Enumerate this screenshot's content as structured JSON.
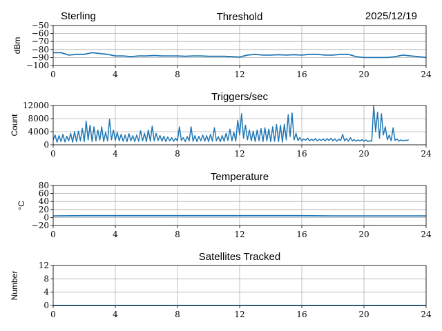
{
  "header": {
    "station": "Sterling",
    "date": "2025/12/19"
  },
  "chart_data": [
    {
      "type": "line",
      "title": "Threshold",
      "ylabel": "dBm",
      "xlim": [
        0,
        24
      ],
      "ylim": [
        -100,
        -50
      ],
      "xticks": [
        "0",
        "4",
        "8",
        "12",
        "16",
        "20",
        "24"
      ],
      "yticks": [
        "-100",
        "-90",
        "-80",
        "-70",
        "-60",
        "-50"
      ],
      "grid": true,
      "color": "#1f77b4",
      "x_step": 0.5,
      "values": [
        -84,
        -84,
        -87,
        -86,
        -86,
        -84,
        -85,
        -86,
        -88,
        -88,
        -89,
        -88,
        -88,
        -87.5,
        -88,
        -88,
        -88,
        -88.5,
        -88,
        -88,
        -88.5,
        -88.5,
        -88.5,
        -89,
        -89.5,
        -87,
        -86,
        -87,
        -87,
        -86.5,
        -87,
        -86.5,
        -87,
        -86,
        -86,
        -87,
        -87,
        -86,
        -86,
        -89,
        -90,
        -90,
        -90,
        -90,
        -89,
        -87,
        -88,
        -89,
        -90
      ]
    },
    {
      "type": "line",
      "title": "Triggers/sec",
      "ylabel": "Count",
      "xlim": [
        0,
        24
      ],
      "ylim": [
        0,
        12000
      ],
      "xticks": [
        "0",
        "4",
        "8",
        "12",
        "16",
        "20",
        "24"
      ],
      "yticks": [
        "0",
        "4000",
        "8000",
        "12000"
      ],
      "grid": true,
      "color": "#1f77b4",
      "x_step": 0.125,
      "values": [
        1500,
        3000,
        800,
        2800,
        1000,
        3200,
        900,
        2600,
        1200,
        3500,
        800,
        4000,
        1000,
        4200,
        1200,
        5000,
        1000,
        7200,
        1500,
        6000,
        1000,
        5500,
        1200,
        4500,
        1400,
        5500,
        1000,
        3800,
        1200,
        7800,
        1500,
        4500,
        1300,
        3800,
        1200,
        3200,
        1100,
        3000,
        1000,
        3400,
        1200,
        2800,
        1000,
        3000,
        1100,
        4300,
        1200,
        3500,
        1000,
        4500,
        1100,
        5700,
        1200,
        3500,
        1300,
        2800,
        1100,
        2600,
        1000,
        2400,
        1200,
        2200,
        1100,
        2000,
        1200,
        5500,
        1300,
        2200,
        1000,
        2500,
        1200,
        5500,
        1100,
        2800,
        1000,
        2600,
        1200,
        3000,
        1100,
        2800,
        1000,
        3200,
        1100,
        5200,
        1200,
        2500,
        1000,
        2800,
        1100,
        3500,
        1300,
        4800,
        1200,
        3800,
        1100,
        7500,
        3000,
        9500,
        2000,
        6000,
        1500,
        4500,
        1200,
        4200,
        1000,
        4500,
        1200,
        5000,
        1000,
        5200,
        1200,
        4800,
        1000,
        5500,
        1100,
        6200,
        1000,
        6000,
        800,
        6300,
        1500,
        9200,
        2500,
        9700,
        1500,
        3500,
        1300,
        2200,
        1200,
        1800,
        1400,
        2000,
        1200,
        1700,
        1300,
        1900,
        1200,
        1700,
        1300,
        1800,
        1200,
        1900,
        1300,
        2000,
        1200,
        1800,
        1100,
        1700,
        1300,
        3200,
        1200,
        1900,
        1100,
        2200,
        1200,
        1600,
        1100,
        1500,
        1200,
        1600,
        1100,
        1500,
        1000,
        1300,
        1100,
        12000,
        4000,
        10000,
        2000,
        9500,
        3000,
        5500,
        1500,
        3000,
        1200,
        5200,
        1300,
        1800,
        1100,
        1500,
        1200,
        1400,
        1300,
        1600
      ]
    },
    {
      "type": "line",
      "title": "Temperature",
      "ylabel": "°C",
      "xlim": [
        0,
        24
      ],
      "ylim": [
        -20,
        80
      ],
      "xticks": [
        "0",
        "4",
        "8",
        "12",
        "16",
        "20",
        "24"
      ],
      "yticks": [
        "-20",
        "0",
        "20",
        "40",
        "60",
        "80"
      ],
      "grid": true,
      "color": "#1f77b4",
      "x_step": 2,
      "values": [
        4,
        4.5,
        4.5,
        4.5,
        4.5,
        4.5,
        4.5,
        4.5,
        4.5,
        4,
        4,
        4,
        4
      ]
    },
    {
      "type": "line",
      "title": "Satellites Tracked",
      "ylabel": "Number",
      "xlim": [
        0,
        24
      ],
      "ylim": [
        0,
        12
      ],
      "xticks": [
        "0",
        "4",
        "8",
        "12",
        "16",
        "20",
        "24"
      ],
      "yticks": [
        "0",
        "4",
        "8",
        "12"
      ],
      "grid": true,
      "color": "#1f77b4",
      "x_step": 24,
      "values": [
        0,
        0
      ]
    }
  ]
}
